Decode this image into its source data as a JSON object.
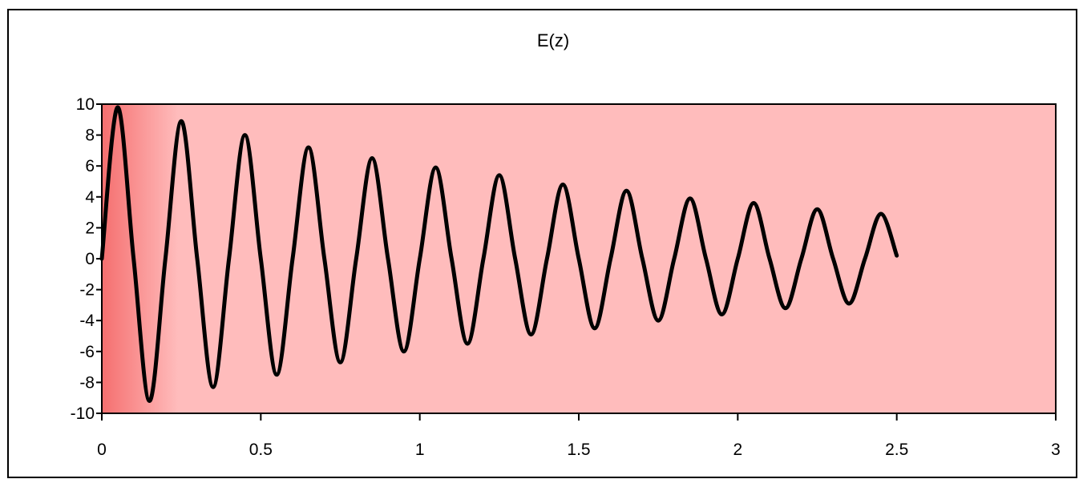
{
  "chart_data": {
    "type": "line",
    "title": "E(z)",
    "xlabel": "",
    "ylabel": "",
    "xlim": [
      0,
      3
    ],
    "ylim": [
      -10,
      10
    ],
    "x_ticks": [
      0,
      0.5,
      1,
      1.5,
      2,
      2.5,
      3
    ],
    "x_tick_labels": [
      "0",
      "0.5",
      "1",
      "1.5",
      "2",
      "2.5",
      "3"
    ],
    "y_ticks": [
      -10,
      -8,
      -6,
      -4,
      -2,
      0,
      2,
      4,
      6,
      8,
      10
    ],
    "y_tick_labels": [
      "-10",
      "-8",
      "-6",
      "-4",
      "-2",
      "0",
      "2",
      "4",
      "6",
      "8",
      "10"
    ],
    "grid": false,
    "legend": "none",
    "colors": {
      "plot_background": "#ffbcbc",
      "plot_gradient_start": "#f56f6f",
      "line": "#000000",
      "border": "#000000"
    },
    "series": [
      {
        "x": [
          0,
          0.05,
          0.1,
          0.15,
          0.2,
          0.25,
          0.3,
          0.35,
          0.4,
          0.45,
          0.5,
          0.55,
          0.6,
          0.65,
          0.7,
          0.75,
          0.8,
          0.85,
          0.9,
          0.95,
          1,
          1.05,
          1.1,
          1.15,
          1.2,
          1.25,
          1.3,
          1.35,
          1.4,
          1.45,
          1.5,
          1.55,
          1.6,
          1.65,
          1.7,
          1.75,
          1.8,
          1.85,
          1.9,
          1.95,
          2,
          2.05,
          2.1,
          2.15,
          2.2,
          2.25,
          2.3,
          2.35,
          2.4,
          2.45,
          2.5
        ],
        "y": [
          0,
          9.8,
          0,
          -9.2,
          0,
          8.9,
          0,
          -8.3,
          0,
          8.0,
          0,
          -7.5,
          0,
          7.2,
          0,
          -6.7,
          0,
          6.5,
          0,
          -6.0,
          0,
          5.9,
          0,
          -5.5,
          0,
          5.4,
          0,
          -4.9,
          0,
          4.8,
          0,
          -4.5,
          0,
          4.4,
          0,
          -4.0,
          0,
          3.9,
          0,
          -3.6,
          0,
          3.6,
          0,
          -3.2,
          0,
          3.2,
          0,
          -2.9,
          0,
          2.9,
          0.2
        ]
      }
    ]
  }
}
